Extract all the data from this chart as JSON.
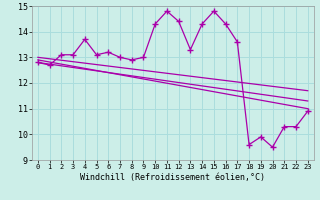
{
  "title": "",
  "xlabel": "Windchill (Refroidissement éolien,°C)",
  "ylabel": "",
  "xlim": [
    -0.5,
    23.5
  ],
  "ylim": [
    9,
    15
  ],
  "yticks": [
    9,
    10,
    11,
    12,
    13,
    14,
    15
  ],
  "xticks": [
    0,
    1,
    2,
    3,
    4,
    5,
    6,
    7,
    8,
    9,
    10,
    11,
    12,
    13,
    14,
    15,
    16,
    17,
    18,
    19,
    20,
    21,
    22,
    23
  ],
  "bg_color": "#cceee8",
  "grid_color": "#aadddd",
  "line_color": "#aa00aa",
  "line1_x": [
    0,
    1,
    2,
    3,
    4,
    5,
    6,
    7,
    8,
    9,
    10,
    11,
    12,
    13,
    14,
    15,
    16,
    17,
    18,
    19,
    20,
    21,
    22,
    23
  ],
  "line1_y": [
    12.8,
    12.7,
    13.1,
    13.1,
    13.7,
    13.1,
    13.2,
    13.0,
    12.9,
    13.0,
    14.3,
    14.8,
    14.4,
    13.3,
    14.3,
    14.8,
    14.3,
    13.6,
    9.6,
    9.9,
    9.5,
    10.3,
    10.3,
    10.9
  ],
  "line2_x": [
    0,
    23
  ],
  "line2_y": [
    12.9,
    11.0
  ],
  "line3_x": [
    0,
    23
  ],
  "line3_y": [
    12.8,
    11.3
  ],
  "line4_x": [
    0,
    23
  ],
  "line4_y": [
    13.0,
    11.7
  ]
}
